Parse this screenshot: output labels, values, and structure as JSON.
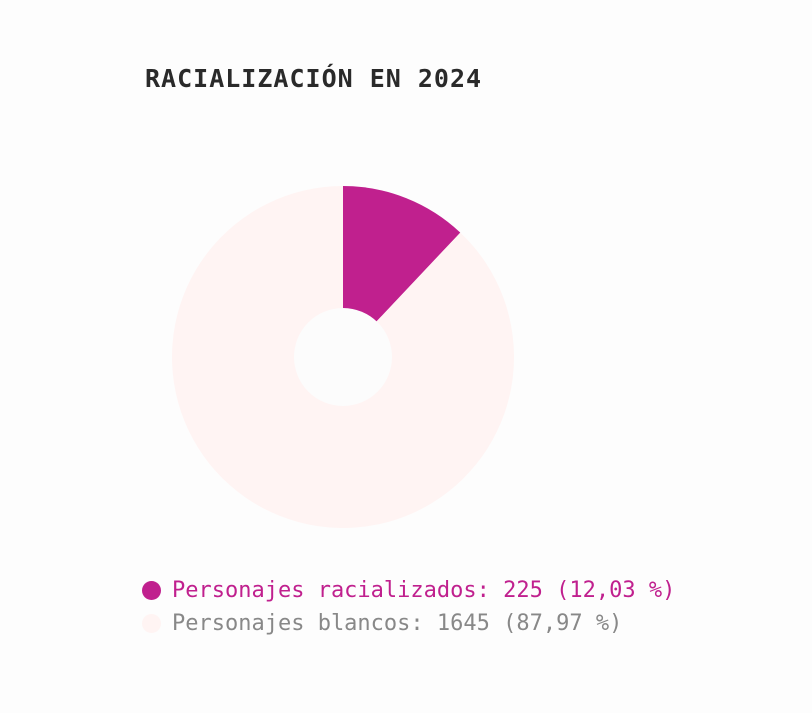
{
  "chart_data": {
    "type": "pie",
    "title": "RACIALIZACIÓN EN 2024",
    "series": [
      {
        "name": "Personajes racializados",
        "value": 225,
        "percent": 12.03,
        "color": "#c0208e",
        "legend_text": "Personajes racializados: 225 (12,03 %)",
        "legend_text_color": "#c0208e"
      },
      {
        "name": "Personajes blancos",
        "value": 1645,
        "percent": 87.97,
        "color": "#fff4f3",
        "legend_text": "Personajes blancos: 1645 (87,97 %)",
        "legend_text_color": "#888888"
      }
    ],
    "donut": true,
    "legend_position": "bottom-left"
  }
}
